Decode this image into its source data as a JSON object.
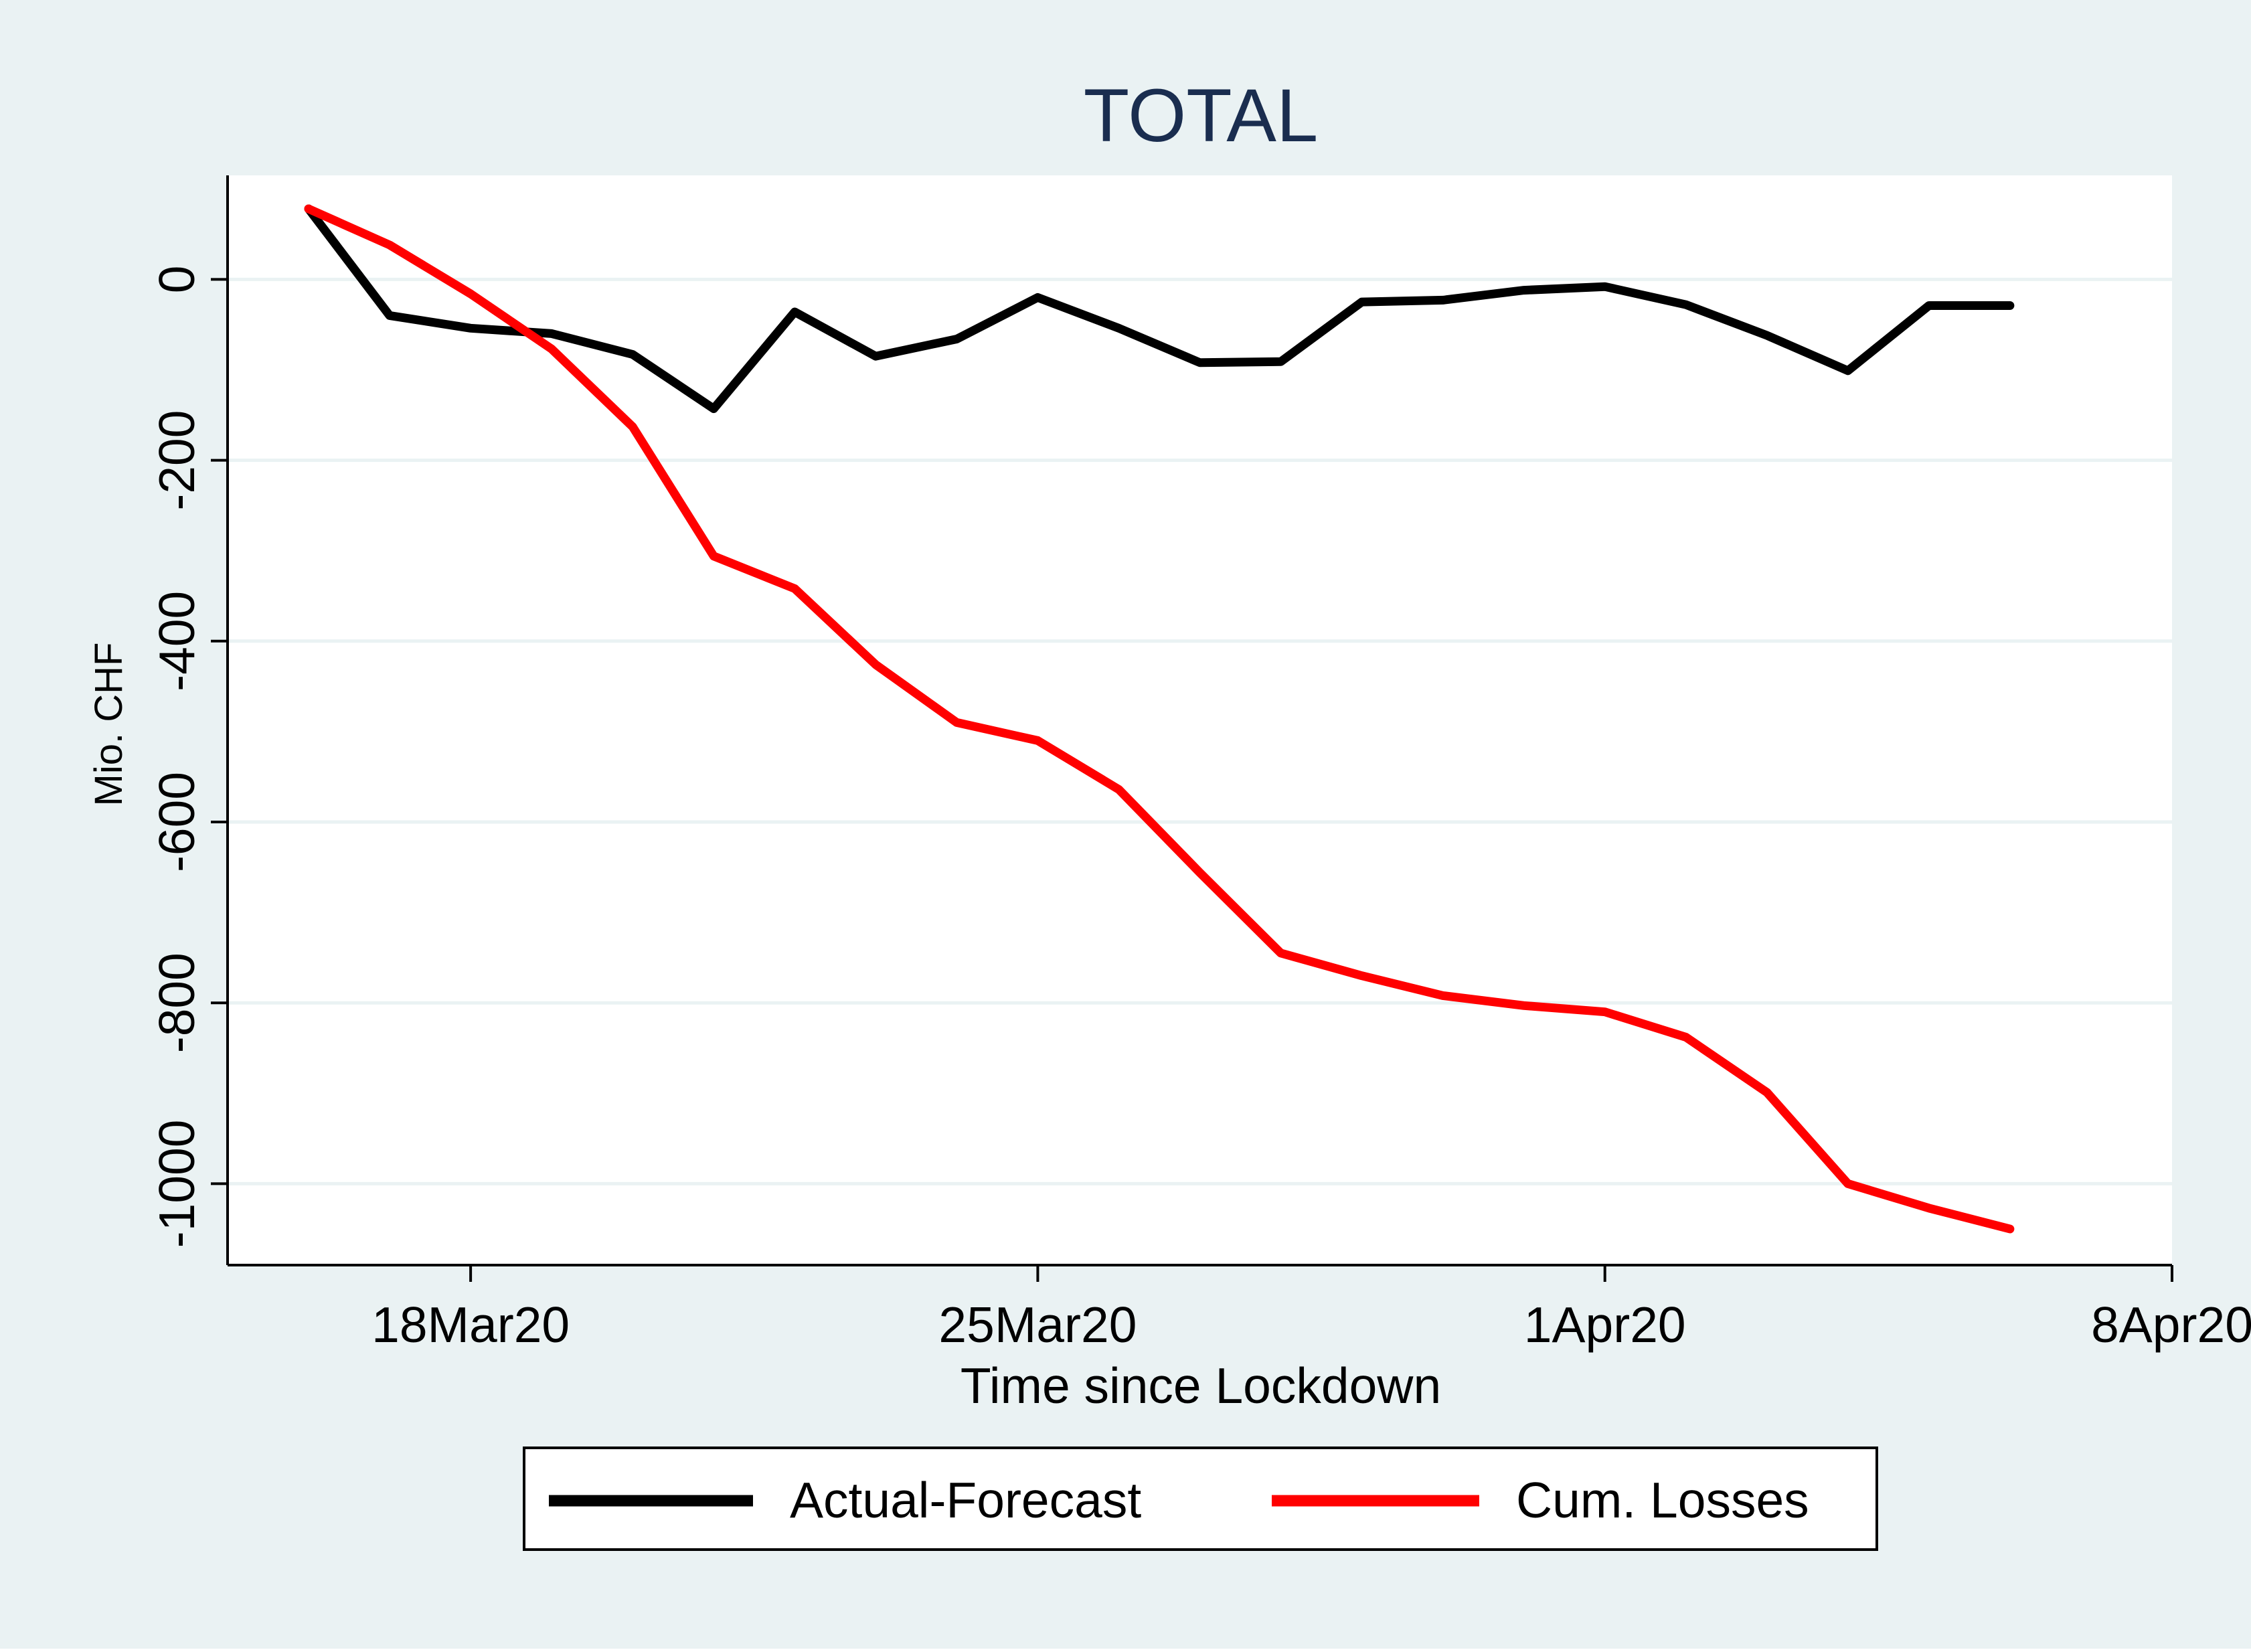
{
  "colors": {
    "outer_background": "#eaf2f3",
    "plot_background": "#ffffff",
    "gridline": "#eaf2f3",
    "title": "#1a2d4f",
    "axis": "#000000"
  },
  "chart_data": {
    "type": "line",
    "title": "TOTAL",
    "xlabel": "Time since Lockdown",
    "ylabel": "Mio. CHF",
    "x_axis_type": "date",
    "xlim": [
      "2020-03-15",
      "2020-04-08"
    ],
    "ylim": [
      -1090,
      115
    ],
    "grid": true,
    "legend_position": "bottom",
    "x_ticks": [
      {
        "value": "2020-03-18",
        "label": "18Mar20"
      },
      {
        "value": "2020-03-25",
        "label": "25Mar20"
      },
      {
        "value": "2020-04-01",
        "label": "1Apr20"
      },
      {
        "value": "2020-04-08",
        "label": "8Apr20"
      }
    ],
    "y_ticks": [
      {
        "value": 0,
        "label": "0"
      },
      {
        "value": -200,
        "label": "-200"
      },
      {
        "value": -400,
        "label": "-400"
      },
      {
        "value": -600,
        "label": "-600"
      },
      {
        "value": -800,
        "label": "-800"
      },
      {
        "value": -1000,
        "label": "-1000"
      }
    ],
    "x": [
      "2020-03-16",
      "2020-03-17",
      "2020-03-18",
      "2020-03-19",
      "2020-03-20",
      "2020-03-21",
      "2020-03-22",
      "2020-03-23",
      "2020-03-24",
      "2020-03-25",
      "2020-03-26",
      "2020-03-27",
      "2020-03-28",
      "2020-03-29",
      "2020-03-30",
      "2020-03-31",
      "2020-04-01",
      "2020-04-02",
      "2020-04-03",
      "2020-04-04",
      "2020-04-05",
      "2020-04-06"
    ],
    "series": [
      {
        "name": "Actual-Forecast",
        "color": "#000000",
        "values": [
          78,
          -40,
          -54,
          -60,
          -83,
          -143,
          -36,
          -85,
          -66,
          -20,
          -54,
          -92,
          -91,
          -25,
          -23,
          -12,
          -8,
          -28,
          -62,
          -101,
          -29,
          -29
        ]
      },
      {
        "name": "Cum. Losses",
        "color": "#ff0000",
        "values": [
          78,
          38,
          -16,
          -77,
          -163,
          -306,
          -342,
          -426,
          -490,
          -510,
          -564,
          -656,
          -745,
          -770,
          -792,
          -803,
          -810,
          -838,
          -899,
          -1000,
          -1027,
          -1050
        ]
      }
    ]
  }
}
